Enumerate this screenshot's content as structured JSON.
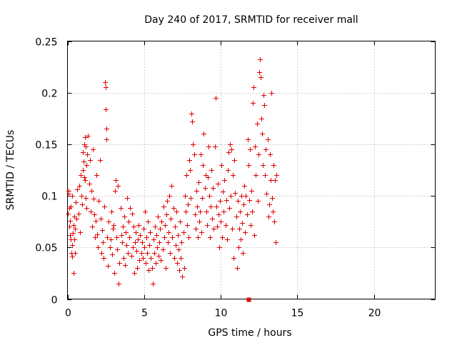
{
  "chart_data": {
    "type": "scatter",
    "title": "Day 240 of 2017, SRMTID for receiver mall",
    "xlabel": "GPS time / hours",
    "ylabel": "SRMTID / TECUs",
    "xlim": [
      0,
      24
    ],
    "ylim": [
      0,
      0.25
    ],
    "xticks": [
      0,
      5,
      10,
      15,
      20
    ],
    "xtick_labels": [
      "0",
      "5",
      "10",
      "15",
      "20"
    ],
    "yticks": [
      0,
      0.05,
      0.1,
      0.15,
      0.2,
      0.25
    ],
    "ytick_labels": [
      "0",
      "0.05",
      "0.1",
      "0.15",
      "0.2",
      "0.25"
    ],
    "grid": true,
    "marker": "plus",
    "color": "#e00000",
    "series": [
      {
        "marker": "plus",
        "points": [
          [
            0.02,
            0.083
          ],
          [
            0.05,
            0.105
          ],
          [
            0.08,
            0.102
          ],
          [
            0.1,
            0.088
          ],
          [
            0.12,
            0.07
          ],
          [
            0.15,
            0.076
          ],
          [
            0.18,
            0.062
          ],
          [
            0.2,
            0.058
          ],
          [
            0.22,
            0.09
          ],
          [
            0.25,
            0.045
          ],
          [
            0.28,
            0.052
          ],
          [
            0.3,
            0.041
          ],
          [
            0.32,
            0.1
          ],
          [
            0.35,
            0.064
          ],
          [
            0.38,
            0.072
          ],
          [
            0.4,
            0.025
          ],
          [
            0.42,
            0.058
          ],
          [
            0.45,
            0.08
          ],
          [
            0.48,
            0.068
          ],
          [
            0.5,
            0.045
          ],
          [
            0.55,
            0.094
          ],
          [
            0.6,
            0.078
          ],
          [
            0.65,
            0.106
          ],
          [
            0.7,
            0.083
          ],
          [
            0.75,
            0.11
          ],
          [
            0.8,
            0.065
          ],
          [
            0.85,
            0.12
          ],
          [
            0.9,
            0.1
          ],
          [
            0.95,
            0.092
          ],
          [
            1.0,
            0.142
          ],
          [
            1.02,
            0.125
          ],
          [
            1.05,
            0.133
          ],
          [
            1.08,
            0.118
          ],
          [
            1.1,
            0.15
          ],
          [
            1.12,
            0.115
          ],
          [
            1.15,
            0.157
          ],
          [
            1.18,
            0.148
          ],
          [
            1.2,
            0.098
          ],
          [
            1.22,
            0.088
          ],
          [
            1.25,
            0.13
          ],
          [
            1.3,
            0.14
          ],
          [
            1.35,
            0.158
          ],
          [
            1.4,
            0.112
          ],
          [
            1.45,
            0.135
          ],
          [
            1.5,
            0.085
          ],
          [
            1.55,
            0.105
          ],
          [
            1.6,
            0.07
          ],
          [
            1.65,
            0.145
          ],
          [
            1.7,
            0.097
          ],
          [
            1.75,
            0.082
          ],
          [
            1.8,
            0.06
          ],
          [
            1.85,
            0.076
          ],
          [
            1.9,
            0.12
          ],
          [
            1.95,
            0.063
          ],
          [
            2.0,
            0.05
          ],
          [
            2.05,
            0.095
          ],
          [
            2.1,
            0.135
          ],
          [
            2.15,
            0.078
          ],
          [
            2.2,
            0.045
          ],
          [
            2.25,
            0.067
          ],
          [
            2.3,
            0.055
          ],
          [
            2.35,
            0.04
          ],
          [
            2.4,
            0.09
          ],
          [
            2.45,
            0.21
          ],
          [
            2.47,
            0.205
          ],
          [
            2.5,
            0.184
          ],
          [
            2.52,
            0.165
          ],
          [
            2.55,
            0.155
          ],
          [
            2.6,
            0.06
          ],
          [
            2.65,
            0.032
          ],
          [
            2.7,
            0.075
          ],
          [
            2.75,
            0.05
          ],
          [
            2.8,
            0.058
          ],
          [
            2.85,
            0.085
          ],
          [
            2.9,
            0.043
          ],
          [
            2.95,
            0.068
          ],
          [
            3.0,
            0.072
          ],
          [
            3.05,
            0.025
          ],
          [
            3.1,
            0.105
          ],
          [
            3.15,
            0.115
          ],
          [
            3.2,
            0.06
          ],
          [
            3.25,
            0.048
          ],
          [
            3.3,
            0.11
          ],
          [
            3.35,
            0.015
          ],
          [
            3.4,
            0.035
          ],
          [
            3.45,
            0.088
          ],
          [
            3.5,
            0.062
          ],
          [
            3.55,
            0.055
          ],
          [
            3.6,
            0.07
          ],
          [
            3.65,
            0.04
          ],
          [
            3.7,
            0.08
          ],
          [
            3.75,
            0.033
          ],
          [
            3.8,
            0.065
          ],
          [
            3.85,
            0.052
          ],
          [
            3.9,
            0.098
          ],
          [
            3.95,
            0.045
          ],
          [
            4.0,
            0.075
          ],
          [
            4.05,
            0.06
          ],
          [
            4.1,
            0.088
          ],
          [
            4.15,
            0.042
          ],
          [
            4.2,
            0.083
          ],
          [
            4.25,
            0.05
          ],
          [
            4.3,
            0.07
          ],
          [
            4.35,
            0.025
          ],
          [
            4.4,
            0.055
          ],
          [
            4.45,
            0.065
          ],
          [
            4.5,
            0.047
          ],
          [
            4.55,
            0.03
          ],
          [
            4.6,
            0.058
          ],
          [
            4.65,
            0.072
          ],
          [
            4.7,
            0.038
          ],
          [
            4.75,
            0.062
          ],
          [
            4.8,
            0.045
          ],
          [
            4.85,
            0.055
          ],
          [
            4.9,
            0.04
          ],
          [
            4.95,
            0.068
          ],
          [
            5.0,
            0.05
          ],
          [
            5.05,
            0.085
          ],
          [
            5.1,
            0.035
          ],
          [
            5.15,
            0.06
          ],
          [
            5.2,
            0.045
          ],
          [
            5.25,
            0.075
          ],
          [
            5.3,
            0.028
          ],
          [
            5.35,
            0.052
          ],
          [
            5.4,
            0.065
          ],
          [
            5.45,
            0.04
          ],
          [
            5.5,
            0.03
          ],
          [
            5.55,
            0.015
          ],
          [
            5.6,
            0.058
          ],
          [
            5.65,
            0.045
          ],
          [
            5.7,
            0.07
          ],
          [
            5.75,
            0.035
          ],
          [
            5.8,
            0.062
          ],
          [
            5.85,
            0.05
          ],
          [
            5.9,
            0.08
          ],
          [
            5.95,
            0.042
          ],
          [
            6.0,
            0.055
          ],
          [
            6.05,
            0.068
          ],
          [
            6.1,
            0.038
          ],
          [
            6.15,
            0.075
          ],
          [
            6.2,
            0.048
          ],
          [
            6.25,
            0.09
          ],
          [
            6.3,
            0.06
          ],
          [
            6.35,
            0.072
          ],
          [
            6.4,
            0.03
          ],
          [
            6.45,
            0.082
          ],
          [
            6.5,
            0.095
          ],
          [
            6.55,
            0.055
          ],
          [
            6.6,
            0.065
          ],
          [
            6.65,
            0.1
          ],
          [
            6.7,
            0.045
          ],
          [
            6.75,
            0.078
          ],
          [
            6.8,
            0.11
          ],
          [
            6.85,
            0.06
          ],
          [
            6.9,
            0.088
          ],
          [
            6.95,
            0.04
          ],
          [
            7.0,
            0.07
          ],
          [
            7.05,
            0.052
          ],
          [
            7.1,
            0.085
          ],
          [
            7.15,
            0.035
          ],
          [
            7.2,
            0.062
          ],
          [
            7.25,
            0.048
          ],
          [
            7.3,
            0.028
          ],
          [
            7.35,
            0.075
          ],
          [
            7.4,
            0.04
          ],
          [
            7.45,
            0.055
          ],
          [
            7.5,
            0.022
          ],
          [
            7.55,
            0.065
          ],
          [
            7.6,
            0.03
          ],
          [
            7.65,
            0.1
          ],
          [
            7.7,
            0.085
          ],
          [
            7.75,
            0.12
          ],
          [
            7.8,
            0.072
          ],
          [
            7.85,
            0.092
          ],
          [
            7.9,
            0.06
          ],
          [
            7.95,
            0.135
          ],
          [
            8.0,
            0.125
          ],
          [
            8.05,
            0.098
          ],
          [
            8.1,
            0.18
          ],
          [
            8.15,
            0.172
          ],
          [
            8.2,
            0.15
          ],
          [
            8.25,
            0.14
          ],
          [
            8.3,
            0.082
          ],
          [
            8.35,
            0.068
          ],
          [
            8.4,
            0.105
          ],
          [
            8.45,
            0.09
          ],
          [
            8.5,
            0.06
          ],
          [
            8.55,
            0.113
          ],
          [
            8.6,
            0.075
          ],
          [
            8.65,
            0.085
          ],
          [
            8.7,
            0.14
          ],
          [
            8.75,
            0.065
          ],
          [
            8.8,
            0.098
          ],
          [
            8.85,
            0.13
          ],
          [
            8.9,
            0.16
          ],
          [
            8.95,
            0.108
          ],
          [
            9.0,
            0.12
          ],
          [
            9.05,
            0.085
          ],
          [
            9.1,
            0.072
          ],
          [
            9.15,
            0.118
          ],
          [
            9.2,
            0.148
          ],
          [
            9.25,
            0.1
          ],
          [
            9.3,
            0.06
          ],
          [
            9.35,
            0.09
          ],
          [
            9.4,
            0.125
          ],
          [
            9.45,
            0.078
          ],
          [
            9.5,
            0.108
          ],
          [
            9.55,
            0.068
          ],
          [
            9.6,
            0.148
          ],
          [
            9.65,
            0.195
          ],
          [
            9.7,
            0.09
          ],
          [
            9.75,
            0.07
          ],
          [
            9.8,
            0.112
          ],
          [
            9.85,
            0.082
          ],
          [
            9.9,
            0.05
          ],
          [
            9.95,
            0.095
          ],
          [
            10.0,
            0.075
          ],
          [
            10.05,
            0.13
          ],
          [
            10.1,
            0.06
          ],
          [
            10.15,
            0.104
          ],
          [
            10.2,
            0.085
          ],
          [
            10.25,
            0.115
          ],
          [
            10.3,
            0.072
          ],
          [
            10.35,
            0.096
          ],
          [
            10.4,
            0.058
          ],
          [
            10.45,
            0.125
          ],
          [
            10.5,
            0.142
          ],
          [
            10.55,
            0.088
          ],
          [
            10.6,
            0.15
          ],
          [
            10.65,
            0.1
          ],
          [
            10.7,
            0.145
          ],
          [
            10.75,
            0.068
          ],
          [
            10.8,
            0.12
          ],
          [
            10.85,
            0.04
          ],
          [
            10.9,
            0.135
          ],
          [
            10.95,
            0.103
          ],
          [
            11.0,
            0.08
          ],
          [
            11.05,
            0.03
          ],
          [
            11.1,
            0.095
          ],
          [
            11.15,
            0.05
          ],
          [
            11.2,
            0.068
          ],
          [
            11.25,
            0.085
          ],
          [
            11.3,
            0.058
          ],
          [
            11.35,
            0.1
          ],
          [
            11.4,
            0.074
          ],
          [
            11.45,
            0.045
          ],
          [
            11.5,
            0.092
          ],
          [
            11.55,
            0.11
          ],
          [
            11.6,
            0.065
          ],
          [
            11.65,
            0.1
          ],
          [
            11.7,
            0.082
          ],
          [
            11.75,
            0.155
          ],
          [
            11.8,
            0.13
          ],
          [
            11.85,
            0.096
          ],
          [
            11.9,
            0.145
          ],
          [
            11.95,
            0.072
          ],
          [
            12.0,
            0.105
          ],
          [
            12.05,
            0.085
          ],
          [
            12.1,
            0.19
          ],
          [
            12.15,
            0.205
          ],
          [
            12.2,
            0.062
          ],
          [
            12.25,
            0.148
          ],
          [
            12.3,
            0.12
          ],
          [
            12.35,
            0.17
          ],
          [
            12.4,
            0.095
          ],
          [
            12.45,
            0.14
          ],
          [
            12.5,
            0.22
          ],
          [
            12.55,
            0.232
          ],
          [
            12.6,
            0.215
          ],
          [
            12.65,
            0.175
          ],
          [
            12.7,
            0.16
          ],
          [
            12.75,
            0.13
          ],
          [
            12.8,
            0.198
          ],
          [
            12.85,
            0.188
          ],
          [
            12.9,
            0.12
          ],
          [
            12.95,
            0.145
          ],
          [
            13.0,
            0.102
          ],
          [
            13.05,
            0.155
          ],
          [
            13.1,
            0.08
          ],
          [
            13.15,
            0.092
          ],
          [
            13.2,
            0.14
          ],
          [
            13.25,
            0.115
          ],
          [
            13.3,
            0.2
          ],
          [
            13.35,
            0.098
          ],
          [
            13.4,
            0.085
          ],
          [
            13.45,
            0.13
          ],
          [
            13.5,
            0.075
          ],
          [
            13.55,
            0.115
          ],
          [
            13.6,
            0.055
          ],
          [
            13.65,
            0.12
          ]
        ]
      },
      {
        "marker": "square",
        "points": [
          [
            11.8,
            0.0
          ]
        ]
      }
    ]
  }
}
